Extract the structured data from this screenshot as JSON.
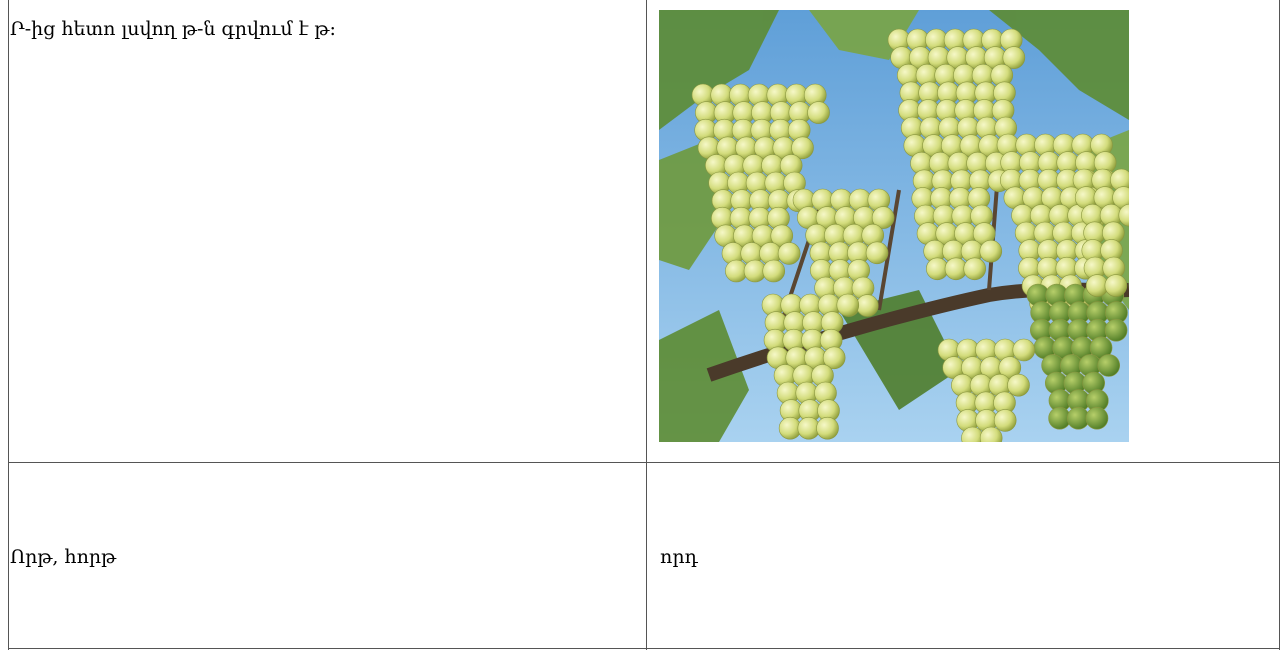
{
  "table": {
    "rows": [
      [
        "Ր-ից հետո լսվող թ-ն գրվում է թ:"
      ],
      [
        "Որթ, հորթ",
        "որդ"
      ]
    ]
  }
}
